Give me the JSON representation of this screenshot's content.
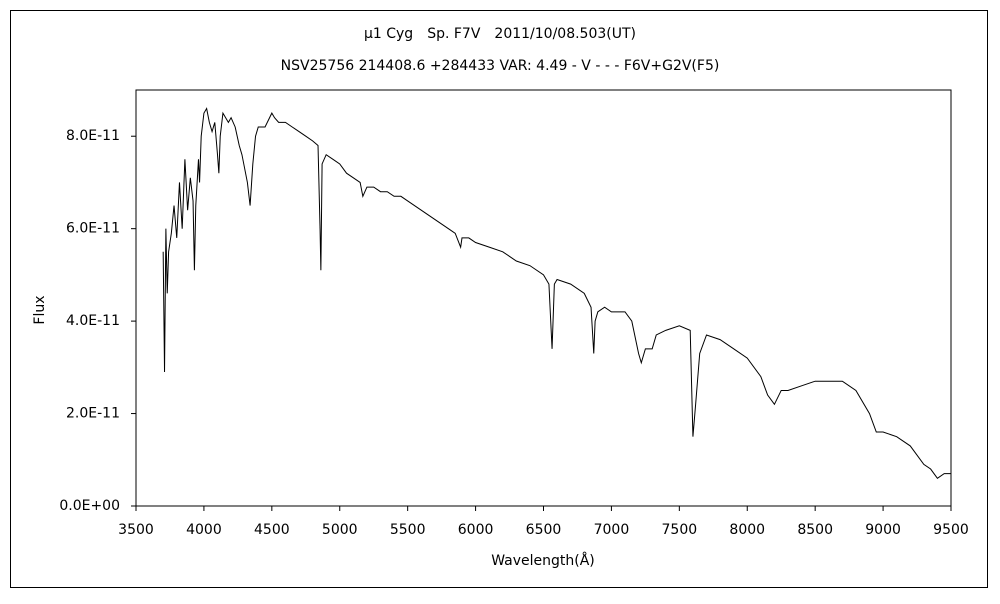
{
  "chart_data": {
    "type": "line",
    "title": "μ1 Cyg　Sp. F7V　2011/10/08.503(UT)",
    "subtitle": "NSV25756 214408.6 +284433 VAR: 4.49 - V - - - F6V+G2V(F5)",
    "x_label": "Wavelength(Å)",
    "y_label": "Flux",
    "xlim": [
      3500,
      9500
    ],
    "xticks": [
      3500,
      4000,
      4500,
      5000,
      5500,
      6000,
      6500,
      7000,
      7500,
      8000,
      8500,
      9000,
      9500
    ],
    "ylim": [
      0,
      9e-11
    ],
    "yticks": [
      {
        "value": 0,
        "label": "0.0E+00"
      },
      {
        "value": 2e-11,
        "label": "2.0E-11"
      },
      {
        "value": 4e-11,
        "label": "4.0E-11"
      },
      {
        "value": 6e-11,
        "label": "6.0E-11"
      },
      {
        "value": 8e-11,
        "label": "8.0E-11"
      }
    ],
    "grid": false,
    "series": [
      {
        "color": "#000000",
        "x": [
          3700,
          3710,
          3720,
          3730,
          3740,
          3760,
          3780,
          3800,
          3820,
          3840,
          3860,
          3880,
          3900,
          3920,
          3930,
          3940,
          3960,
          3968,
          3980,
          4000,
          4020,
          4040,
          4060,
          4080,
          4100,
          4110,
          4120,
          4140,
          4160,
          4180,
          4200,
          4230,
          4260,
          4280,
          4300,
          4320,
          4340,
          4360,
          4380,
          4400,
          4450,
          4500,
          4520,
          4550,
          4600,
          4650,
          4700,
          4750,
          4800,
          4840,
          4855,
          4861,
          4870,
          4900,
          4950,
          5000,
          5050,
          5100,
          5150,
          5170,
          5200,
          5250,
          5300,
          5350,
          5400,
          5450,
          5500,
          5550,
          5600,
          5650,
          5700,
          5750,
          5800,
          5850,
          5890,
          5900,
          5950,
          6000,
          6100,
          6200,
          6300,
          6400,
          6500,
          6540,
          6563,
          6580,
          6600,
          6700,
          6800,
          6850,
          6870,
          6880,
          6900,
          6950,
          7000,
          7100,
          7150,
          7200,
          7220,
          7250,
          7300,
          7330,
          7400,
          7500,
          7580,
          7600,
          7620,
          7650,
          7700,
          7800,
          7900,
          8000,
          8100,
          8150,
          8200,
          8250,
          8300,
          8400,
          8500,
          8600,
          8700,
          8800,
          8900,
          8950,
          9000,
          9100,
          9200,
          9300,
          9350,
          9400,
          9450,
          9500
        ],
        "values": [
          5.5e-11,
          2.9e-11,
          6e-11,
          4.6e-11,
          5.5e-11,
          5.9e-11,
          6.5e-11,
          5.8e-11,
          7e-11,
          6e-11,
          7.5e-11,
          6.4e-11,
          7.1e-11,
          6.6e-11,
          5.1e-11,
          6.5e-11,
          7.5e-11,
          7e-11,
          8e-11,
          8.5e-11,
          8.6e-11,
          8.3e-11,
          8.1e-11,
          8.3e-11,
          7.6e-11,
          7.2e-11,
          8e-11,
          8.5e-11,
          8.4e-11,
          8.3e-11,
          8.4e-11,
          8.2e-11,
          7.8e-11,
          7.6e-11,
          7.3e-11,
          7e-11,
          6.5e-11,
          7.4e-11,
          8e-11,
          8.2e-11,
          8.2e-11,
          8.5e-11,
          8.4e-11,
          8.3e-11,
          8.3e-11,
          8.2e-11,
          8.1e-11,
          8e-11,
          7.9e-11,
          7.8e-11,
          6e-11,
          5.1e-11,
          7.4e-11,
          7.6e-11,
          7.5e-11,
          7.4e-11,
          7.2e-11,
          7.1e-11,
          7e-11,
          6.7e-11,
          6.9e-11,
          6.9e-11,
          6.8e-11,
          6.8e-11,
          6.7e-11,
          6.7e-11,
          6.6e-11,
          6.5e-11,
          6.4e-11,
          6.3e-11,
          6.2e-11,
          6.1e-11,
          6e-11,
          5.9e-11,
          5.6e-11,
          5.8e-11,
          5.8e-11,
          5.7e-11,
          5.6e-11,
          5.5e-11,
          5.3e-11,
          5.2e-11,
          5e-11,
          4.8e-11,
          3.4e-11,
          4.8e-11,
          4.9e-11,
          4.8e-11,
          4.6e-11,
          4.3e-11,
          3.3e-11,
          4e-11,
          4.2e-11,
          4.3e-11,
          4.2e-11,
          4.2e-11,
          4e-11,
          3.3e-11,
          3.1e-11,
          3.4e-11,
          3.4e-11,
          3.7e-11,
          3.8e-11,
          3.9e-11,
          3.8e-11,
          1.5e-11,
          2.2e-11,
          3.3e-11,
          3.7e-11,
          3.6e-11,
          3.4e-11,
          3.2e-11,
          2.8e-11,
          2.4e-11,
          2.2e-11,
          2.5e-11,
          2.5e-11,
          2.6e-11,
          2.7e-11,
          2.7e-11,
          2.7e-11,
          2.5e-11,
          2e-11,
          1.6e-11,
          1.6e-11,
          1.5e-11,
          1.3e-11,
          9e-12,
          8e-12,
          6e-12,
          7e-12,
          7e-12
        ]
      }
    ]
  }
}
